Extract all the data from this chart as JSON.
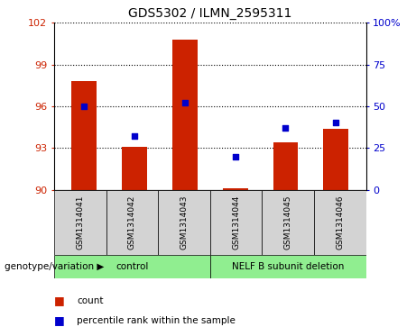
{
  "title": "GDS5302 / ILMN_2595311",
  "samples": [
    "GSM1314041",
    "GSM1314042",
    "GSM1314043",
    "GSM1314044",
    "GSM1314045",
    "GSM1314046"
  ],
  "counts": [
    97.8,
    93.1,
    100.8,
    90.1,
    93.4,
    94.4
  ],
  "percentiles": [
    50,
    32,
    52,
    20,
    37,
    40
  ],
  "ylim_left": [
    90,
    102
  ],
  "ylim_right": [
    0,
    100
  ],
  "yticks_left": [
    90,
    93,
    96,
    99,
    102
  ],
  "yticks_right": [
    0,
    25,
    50,
    75,
    100
  ],
  "ytick_labels_right": [
    "0",
    "25",
    "50",
    "75",
    "100%"
  ],
  "bar_color": "#cc2200",
  "dot_color": "#0000cc",
  "bar_width": 0.5,
  "genotype_label": "genotype/variation",
  "legend_bar_label": "count",
  "legend_dot_label": "percentile rank within the sample",
  "background_color": "#ffffff",
  "label_area_color": "#d3d3d3",
  "group_area_color": "#90ee90"
}
